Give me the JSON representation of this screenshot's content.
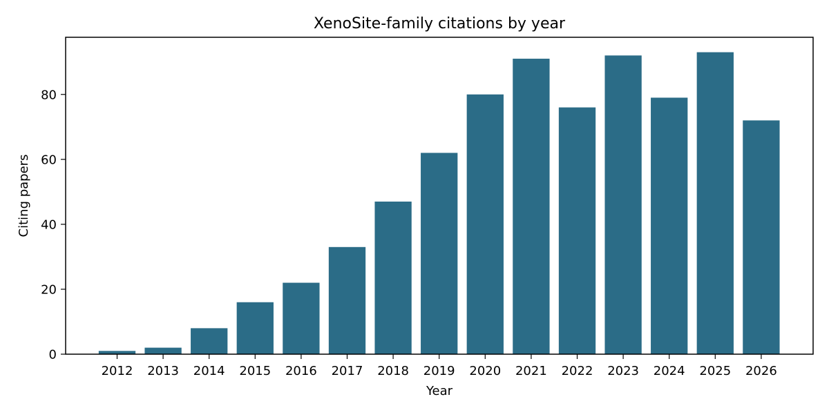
{
  "chart_data": {
    "type": "bar",
    "title": "XenoSite-family citations by year",
    "xlabel": "Year",
    "ylabel": "Citing papers",
    "categories": [
      "2012",
      "2013",
      "2014",
      "2015",
      "2016",
      "2017",
      "2018",
      "2019",
      "2020",
      "2021",
      "2022",
      "2023",
      "2024",
      "2025",
      "2026"
    ],
    "values": [
      1,
      2,
      8,
      16,
      22,
      33,
      47,
      62,
      80,
      91,
      76,
      92,
      79,
      93,
      72
    ],
    "ylim": [
      0,
      97.6
    ],
    "yticks": [
      0,
      20,
      40,
      60,
      80
    ],
    "grid": false,
    "legend": "none",
    "bar_color": "#2b6c87"
  }
}
